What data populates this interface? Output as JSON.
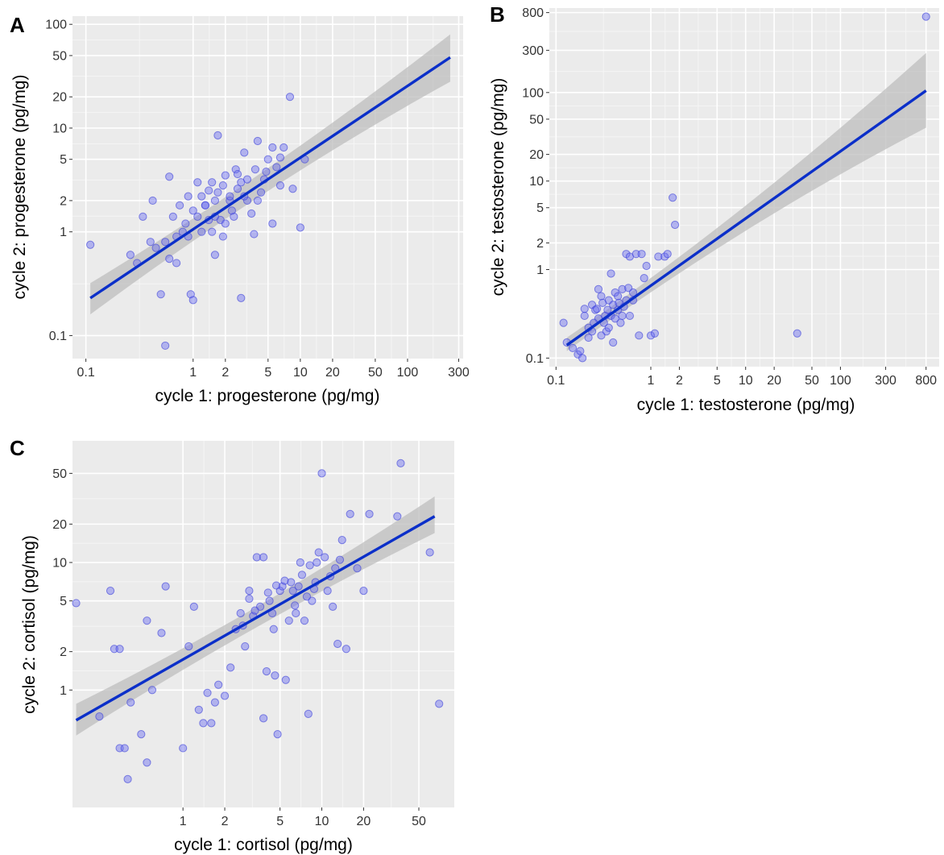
{
  "colors": {
    "panel_bg": "#ebebeb",
    "grid_major": "#ffffff",
    "grid_minor": "#f5f5f5",
    "point_fill": "#6a6cf0",
    "point_stroke": "#3a3fd8",
    "fit_line": "#0b2fc9",
    "ci_band": "#bdbdbd"
  },
  "chart_data": [
    {
      "id": "A",
      "type": "scatter",
      "panel_label": "A",
      "title": "",
      "xlabel": "cycle 1: progesterone (pg/mg)",
      "ylabel": "cycle 2: progesterone (pg/mg)",
      "xscale": "log10",
      "yscale": "log10",
      "xlim": [
        0.075,
        330
      ],
      "ylim": [
        0.06,
        120
      ],
      "xticks": [
        0.1,
        1,
        2,
        5,
        10,
        20,
        50,
        100,
        300
      ],
      "xtick_labels": [
        "0.1",
        "1",
        "2",
        "5",
        "10",
        "20",
        "50",
        "100",
        "300"
      ],
      "yticks": [
        0.1,
        1,
        2,
        5,
        10,
        20,
        50,
        100
      ],
      "ytick_labels": [
        "0.1",
        "1",
        "2",
        "5",
        "10",
        "20",
        "50",
        "100"
      ],
      "grid": true,
      "fit": {
        "x": [
          0.11,
          250
        ],
        "y": [
          0.23,
          48
        ],
        "ci_lower": [
          0.16,
          28
        ],
        "ci_upper": [
          0.32,
          80
        ]
      },
      "points": [
        [
          0.11,
          0.75
        ],
        [
          0.26,
          0.6
        ],
        [
          0.34,
          1.4
        ],
        [
          0.42,
          2.0
        ],
        [
          0.4,
          0.8
        ],
        [
          0.55,
          0.8
        ],
        [
          0.6,
          0.55
        ],
        [
          0.7,
          0.9
        ],
        [
          0.6,
          3.4
        ],
        [
          0.65,
          1.4
        ],
        [
          0.8,
          1.0
        ],
        [
          0.85,
          1.2
        ],
        [
          0.9,
          2.2
        ],
        [
          1.0,
          1.6
        ],
        [
          1.1,
          3.0
        ],
        [
          1.2,
          2.2
        ],
        [
          1.3,
          1.8
        ],
        [
          1.4,
          2.5
        ],
        [
          1.5,
          1.0
        ],
        [
          1.6,
          2.0
        ],
        [
          1.7,
          8.5
        ],
        [
          1.8,
          1.3
        ],
        [
          1.9,
          2.8
        ],
        [
          2.0,
          3.5
        ],
        [
          2.2,
          2.0
        ],
        [
          2.4,
          1.4
        ],
        [
          2.6,
          2.6
        ],
        [
          2.8,
          3.0
        ],
        [
          3.0,
          5.8
        ],
        [
          3.2,
          2.0
        ],
        [
          3.5,
          1.5
        ],
        [
          3.8,
          4.0
        ],
        [
          4.0,
          7.5
        ],
        [
          4.3,
          2.4
        ],
        [
          4.6,
          3.2
        ],
        [
          5.0,
          5.0
        ],
        [
          5.5,
          6.5
        ],
        [
          6.0,
          4.2
        ],
        [
          6.5,
          2.8
        ],
        [
          7.0,
          6.5
        ],
        [
          8.0,
          20.0
        ],
        [
          8.5,
          2.6
        ],
        [
          10.0,
          1.1
        ],
        [
          11.0,
          5.0
        ],
        [
          0.5,
          0.25
        ],
        [
          0.55,
          0.08
        ],
        [
          0.95,
          0.25
        ],
        [
          1.0,
          0.22
        ],
        [
          2.8,
          0.23
        ],
        [
          0.3,
          0.5
        ],
        [
          0.45,
          0.7
        ],
        [
          0.7,
          0.5
        ],
        [
          1.2,
          1.0
        ],
        [
          1.5,
          3.0
        ],
        [
          2.0,
          1.2
        ],
        [
          2.5,
          4.0
        ],
        [
          3.0,
          2.2
        ],
        [
          1.6,
          0.6
        ],
        [
          3.7,
          0.95
        ],
        [
          5.5,
          1.2
        ],
        [
          1.3,
          1.8
        ],
        [
          1.7,
          2.4
        ],
        [
          2.2,
          2.2
        ],
        [
          2.6,
          3.6
        ],
        [
          4.0,
          2.0
        ],
        [
          0.9,
          0.9
        ],
        [
          1.1,
          1.4
        ],
        [
          1.9,
          0.9
        ],
        [
          2.3,
          1.6
        ],
        [
          3.2,
          3.2
        ],
        [
          4.8,
          3.8
        ],
        [
          6.5,
          5.2
        ],
        [
          1.4,
          1.3
        ],
        [
          0.75,
          1.8
        ],
        [
          1.6,
          1.4
        ]
      ]
    },
    {
      "id": "B",
      "type": "scatter",
      "panel_label": "B",
      "title": "",
      "xlabel": "cycle 1: testosterone (pg/mg)",
      "ylabel": "cycle 2: testosterone (pg/mg)",
      "xscale": "log10",
      "yscale": "log10",
      "xlim": [
        0.085,
        1100
      ],
      "ylim": [
        0.08,
        900
      ],
      "xticks": [
        0.1,
        1,
        2,
        5,
        10,
        20,
        50,
        100,
        300,
        800
      ],
      "xtick_labels": [
        "0.1",
        "1",
        "2",
        "5",
        "10",
        "20",
        "50",
        "100",
        "300",
        "800"
      ],
      "yticks": [
        0.1,
        1,
        2,
        5,
        10,
        20,
        50,
        100,
        300,
        800
      ],
      "ytick_labels": [
        "0.1",
        "1",
        "2",
        "5",
        "10",
        "20",
        "50",
        "100",
        "300",
        "800"
      ],
      "grid": true,
      "fit": {
        "x": [
          0.13,
          800
        ],
        "y": [
          0.14,
          105
        ],
        "ci_lower": [
          0.12,
          40
        ],
        "ci_upper": [
          0.17,
          280
        ]
      },
      "points": [
        [
          800,
          720
        ],
        [
          1.7,
          6.5
        ],
        [
          1.8,
          3.2
        ],
        [
          35,
          0.19
        ],
        [
          0.12,
          0.25
        ],
        [
          0.13,
          0.15
        ],
        [
          0.15,
          0.13
        ],
        [
          0.17,
          0.11
        ],
        [
          0.18,
          0.12
        ],
        [
          0.19,
          0.1
        ],
        [
          0.2,
          0.3
        ],
        [
          0.22,
          0.22
        ],
        [
          0.24,
          0.4
        ],
        [
          0.26,
          0.35
        ],
        [
          0.28,
          0.28
        ],
        [
          0.3,
          0.5
        ],
        [
          0.32,
          0.25
        ],
        [
          0.34,
          0.2
        ],
        [
          0.36,
          0.45
        ],
        [
          0.38,
          0.3
        ],
        [
          0.4,
          0.15
        ],
        [
          0.42,
          0.55
        ],
        [
          0.45,
          0.35
        ],
        [
          0.48,
          0.25
        ],
        [
          0.5,
          0.6
        ],
        [
          0.55,
          1.5
        ],
        [
          0.6,
          1.4
        ],
        [
          0.65,
          0.45
        ],
        [
          0.7,
          1.5
        ],
        [
          0.75,
          0.18
        ],
        [
          0.8,
          1.5
        ],
        [
          0.85,
          0.8
        ],
        [
          0.9,
          1.1
        ],
        [
          1.0,
          0.18
        ],
        [
          1.1,
          0.19
        ],
        [
          1.2,
          1.4
        ],
        [
          1.4,
          1.4
        ],
        [
          1.5,
          1.5
        ],
        [
          0.2,
          0.36
        ],
        [
          0.25,
          0.25
        ],
        [
          0.3,
          0.18
        ],
        [
          0.35,
          0.35
        ],
        [
          0.4,
          0.4
        ],
        [
          0.45,
          0.5
        ],
        [
          0.5,
          0.3
        ],
        [
          0.55,
          0.45
        ],
        [
          0.6,
          0.3
        ],
        [
          0.28,
          0.6
        ],
        [
          0.38,
          0.9
        ],
        [
          0.24,
          0.2
        ],
        [
          0.33,
          0.3
        ],
        [
          0.42,
          0.28
        ],
        [
          0.52,
          0.38
        ],
        [
          0.27,
          0.36
        ],
        [
          0.36,
          0.22
        ],
        [
          0.46,
          0.42
        ],
        [
          0.58,
          0.62
        ],
        [
          0.65,
          0.55
        ],
        [
          0.22,
          0.17
        ],
        [
          0.31,
          0.42
        ]
      ]
    },
    {
      "id": "C",
      "type": "scatter",
      "panel_label": "C",
      "title": "",
      "xlabel": "cycle 1: cortisol (pg/mg)",
      "ylabel": "cycle 2: cortisol (pg/mg)",
      "xscale": "log10",
      "yscale": "log10",
      "xlim": [
        0.16,
        90
      ],
      "ylim": [
        0.12,
        90
      ],
      "xticks": [
        1,
        2,
        5,
        10,
        20,
        50
      ],
      "xtick_labels": [
        "1",
        "2",
        "5",
        "10",
        "20",
        "50"
      ],
      "yticks": [
        1,
        2,
        5,
        10,
        20,
        50
      ],
      "ytick_labels": [
        "1",
        "2",
        "5",
        "10",
        "20",
        "50"
      ],
      "grid": true,
      "fit": {
        "x": [
          0.17,
          65
        ],
        "y": [
          0.58,
          23
        ],
        "ci_lower": [
          0.44,
          17
        ],
        "ci_upper": [
          0.78,
          33
        ]
      },
      "points": [
        [
          0.17,
          4.8
        ],
        [
          0.25,
          0.62
        ],
        [
          0.3,
          6.0
        ],
        [
          0.32,
          2.1
        ],
        [
          0.35,
          2.1
        ],
        [
          0.35,
          0.35
        ],
        [
          0.38,
          0.35
        ],
        [
          0.4,
          0.2
        ],
        [
          0.42,
          0.8
        ],
        [
          0.5,
          0.45
        ],
        [
          0.55,
          0.27
        ],
        [
          0.55,
          3.5
        ],
        [
          0.6,
          1.0
        ],
        [
          0.7,
          2.8
        ],
        [
          0.75,
          6.5
        ],
        [
          1.0,
          0.35
        ],
        [
          1.1,
          2.2
        ],
        [
          1.2,
          4.5
        ],
        [
          1.3,
          0.7
        ],
        [
          1.4,
          0.55
        ],
        [
          1.5,
          0.95
        ],
        [
          1.6,
          0.55
        ],
        [
          1.7,
          0.8
        ],
        [
          1.8,
          1.1
        ],
        [
          2.0,
          0.9
        ],
        [
          2.2,
          1.5
        ],
        [
          2.4,
          3.0
        ],
        [
          2.6,
          4.0
        ],
        [
          2.8,
          2.2
        ],
        [
          3.0,
          6.0
        ],
        [
          3.2,
          3.8
        ],
        [
          3.4,
          11.0
        ],
        [
          3.6,
          4.5
        ],
        [
          3.8,
          0.6
        ],
        [
          4.0,
          1.4
        ],
        [
          4.2,
          5.0
        ],
        [
          4.4,
          4.0
        ],
        [
          4.6,
          1.3
        ],
        [
          4.8,
          0.45
        ],
        [
          5.0,
          6.0
        ],
        [
          5.5,
          1.2
        ],
        [
          6.0,
          7.0
        ],
        [
          6.5,
          4.0
        ],
        [
          7.0,
          10.0
        ],
        [
          7.5,
          3.5
        ],
        [
          8.0,
          0.65
        ],
        [
          8.5,
          5.0
        ],
        [
          9.0,
          7.0
        ],
        [
          10.0,
          50.0
        ],
        [
          11.0,
          6.0
        ],
        [
          12.0,
          4.5
        ],
        [
          13.0,
          2.3
        ],
        [
          14.0,
          15.0
        ],
        [
          15.0,
          2.1
        ],
        [
          16.0,
          24.0
        ],
        [
          18.0,
          9.0
        ],
        [
          20.0,
          6.0
        ],
        [
          22.0,
          24.0
        ],
        [
          35.0,
          23.0
        ],
        [
          37.0,
          60.0
        ],
        [
          60.0,
          12.0
        ],
        [
          70.0,
          0.78
        ],
        [
          3.8,
          11.0
        ],
        [
          5.2,
          6.5
        ],
        [
          6.2,
          6.0
        ],
        [
          7.2,
          8.0
        ],
        [
          8.2,
          9.5
        ],
        [
          9.2,
          10.0
        ],
        [
          10.5,
          11.0
        ],
        [
          12.5,
          9.0
        ],
        [
          4.5,
          3.0
        ],
        [
          5.8,
          3.5
        ],
        [
          6.8,
          6.5
        ],
        [
          3.3,
          4.2
        ],
        [
          2.7,
          3.2
        ],
        [
          4.1,
          5.8
        ],
        [
          5.4,
          7.2
        ],
        [
          7.8,
          5.4
        ],
        [
          9.5,
          12.0
        ],
        [
          11.5,
          7.8
        ],
        [
          13.5,
          10.5
        ],
        [
          3.0,
          5.2
        ],
        [
          4.7,
          6.6
        ],
        [
          6.4,
          4.6
        ],
        [
          8.8,
          6.2
        ]
      ]
    }
  ]
}
